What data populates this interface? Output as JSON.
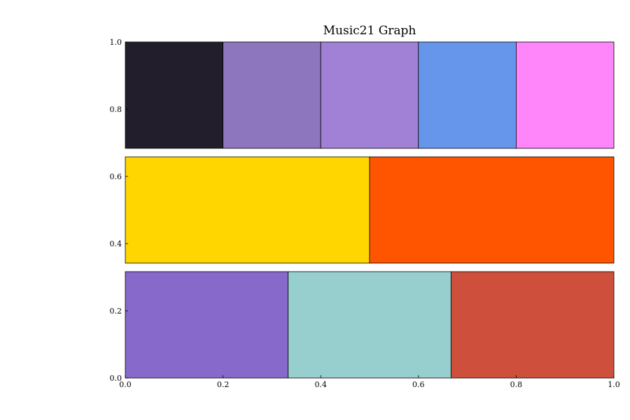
{
  "chart_data": {
    "type": "bar",
    "title": "Music21 Graph",
    "xlabel": "",
    "ylabel": "",
    "xlim": [
      0.0,
      1.0
    ],
    "ylim": [
      0.0,
      1.0
    ],
    "grid": false,
    "legend": "none",
    "x_ticks": [
      "0.0",
      "0.2",
      "0.4",
      "0.6",
      "0.8",
      "1.0"
    ],
    "y_ticks": [
      "0.0",
      "0.2",
      "0.4",
      "0.6",
      "0.8",
      "1.0"
    ],
    "x_tick_values": [
      0.0,
      0.2,
      0.4,
      0.6,
      0.8,
      1.0
    ],
    "y_tick_values": [
      0.0,
      0.2,
      0.4,
      0.6,
      0.8,
      1.0
    ],
    "rows": [
      {
        "y_range": [
          0.6835,
          1.0
        ],
        "segments": [
          {
            "start": 0.0,
            "end": 0.2,
            "color": "#221e2b"
          },
          {
            "start": 0.2,
            "end": 0.4,
            "color": "#8e76be"
          },
          {
            "start": 0.4,
            "end": 0.6,
            "color": "#a081d6"
          },
          {
            "start": 0.6,
            "end": 0.8,
            "color": "#6696ec"
          },
          {
            "start": 0.8,
            "end": 1.0,
            "color": "#ff85fa"
          }
        ]
      },
      {
        "y_range": [
          0.3418,
          0.6582
        ],
        "segments": [
          {
            "start": 0.0,
            "end": 0.5,
            "color": "#ffd600"
          },
          {
            "start": 0.5,
            "end": 1.0,
            "color": "#ff5500"
          }
        ]
      },
      {
        "y_range": [
          0.0,
          0.3165
        ],
        "segments": [
          {
            "start": 0.0,
            "end": 0.3333,
            "color": "#8769cc"
          },
          {
            "start": 0.3333,
            "end": 0.6667,
            "color": "#97cece"
          },
          {
            "start": 0.6667,
            "end": 1.0,
            "color": "#cf4f3d"
          }
        ]
      }
    ]
  }
}
